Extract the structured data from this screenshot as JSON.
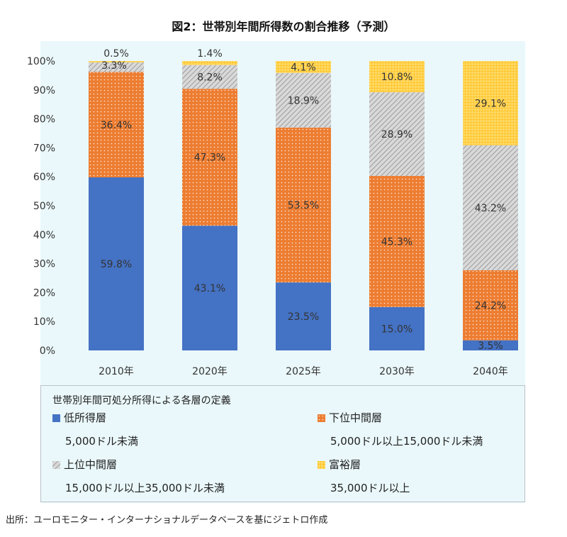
{
  "title": "図2：世帯別年間所得数の割合推移（予測）",
  "source": "出所：ユーロモニター・インターナショナルデータベースを基にジェトロ作成",
  "legend": {
    "title": "世帯別年間可処分所得による各層の定義",
    "items": [
      {
        "name": "低所得層",
        "desc": "5,000ドル未満"
      },
      {
        "name": "下位中間層",
        "desc": "5,000ドル以上15,000ドル未満"
      },
      {
        "name": "上位中間層",
        "desc": "15,000ドル以上35,000ドル未満"
      },
      {
        "name": "富裕層",
        "desc": "35,000ドル以上"
      }
    ]
  },
  "colors": {
    "low": "#4472c4",
    "lower_middle": "#ed7d31",
    "upper_middle": "#b7b7b7",
    "wealthy": "#ffd966",
    "panel": "#eaf8fb"
  },
  "chart_data": {
    "type": "bar",
    "stacked": true,
    "categories": [
      "2010年",
      "2020年",
      "2025年",
      "2030年",
      "2040年"
    ],
    "series": [
      {
        "name": "低所得層",
        "values": [
          59.8,
          43.1,
          23.5,
          15.0,
          3.5
        ],
        "labels": [
          "59.8%",
          "43.1%",
          "23.5%",
          "15.0%",
          "3.5%"
        ]
      },
      {
        "name": "下位中間層",
        "values": [
          36.4,
          47.3,
          53.5,
          45.3,
          24.2
        ],
        "labels": [
          "36.4%",
          "47.3%",
          "53.5%",
          "45.3%",
          "24.2%"
        ]
      },
      {
        "name": "上位中間層",
        "values": [
          3.3,
          8.2,
          18.9,
          28.9,
          43.2
        ],
        "labels": [
          "3.3%",
          "8.2%",
          "18.9%",
          "28.9%",
          "43.2%"
        ]
      },
      {
        "name": "富裕層",
        "values": [
          0.5,
          1.4,
          4.1,
          10.8,
          29.1
        ],
        "labels": [
          "0.5%",
          "1.4%",
          "4.1%",
          "10.8%",
          "29.1%"
        ]
      }
    ],
    "yticks": [
      "0%",
      "10%",
      "20%",
      "30%",
      "40%",
      "50%",
      "60%",
      "70%",
      "80%",
      "90%",
      "100%"
    ],
    "ylim": [
      0,
      100
    ],
    "grid": false
  }
}
